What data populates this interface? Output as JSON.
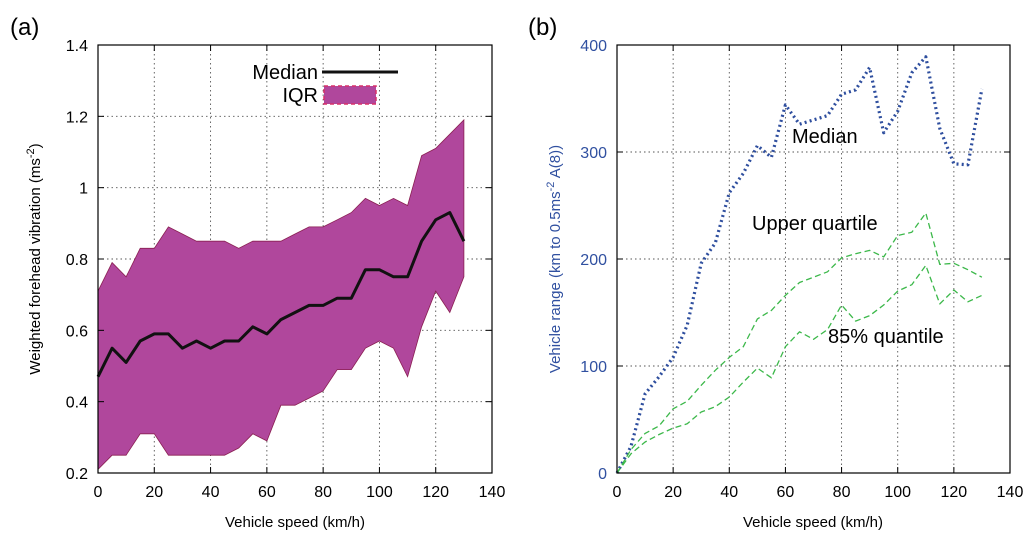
{
  "chart_data": [
    {
      "type": "line",
      "panel_label": "(a)",
      "xlabel": "Vehicle speed (km/h)",
      "ylabel": "Weighted forehead vibration (ms",
      "ylabel_sup": "-2",
      "ylabel_tail": ")",
      "xlim": [
        0,
        140
      ],
      "ylim": [
        0.2,
        1.4
      ],
      "xticks": [
        "0",
        "20",
        "40",
        "60",
        "80",
        "100",
        "120",
        "140"
      ],
      "yticks": [
        "0.2",
        "0.4",
        "0.6",
        "0.8",
        "1",
        "1.2",
        "1.4"
      ],
      "grid": true,
      "legend_position": "top-right",
      "x": [
        0,
        5,
        10,
        15,
        20,
        25,
        30,
        35,
        40,
        45,
        50,
        55,
        60,
        65,
        70,
        75,
        80,
        85,
        90,
        95,
        100,
        105,
        110,
        115,
        120,
        125,
        130
      ],
      "series": [
        {
          "name": "Median",
          "type": "line",
          "color": "#111111",
          "values": [
            0.47,
            0.55,
            0.51,
            0.57,
            0.59,
            0.59,
            0.55,
            0.57,
            0.55,
            0.57,
            0.57,
            0.61,
            0.59,
            0.63,
            0.65,
            0.67,
            0.67,
            0.69,
            0.69,
            0.77,
            0.77,
            0.75,
            0.75,
            0.85,
            0.91,
            0.93,
            0.85
          ]
        },
        {
          "name": "IQR",
          "type": "band",
          "color": "#b0479c",
          "edge_color": "#d8306a",
          "lower": [
            0.21,
            0.25,
            0.25,
            0.31,
            0.31,
            0.25,
            0.25,
            0.25,
            0.25,
            0.25,
            0.27,
            0.31,
            0.29,
            0.39,
            0.39,
            0.41,
            0.43,
            0.49,
            0.49,
            0.55,
            0.57,
            0.55,
            0.47,
            0.61,
            0.71,
            0.65,
            0.75
          ],
          "upper": [
            0.71,
            0.79,
            0.75,
            0.83,
            0.83,
            0.89,
            0.87,
            0.85,
            0.85,
            0.85,
            0.83,
            0.85,
            0.85,
            0.85,
            0.87,
            0.89,
            0.89,
            0.91,
            0.93,
            0.97,
            0.95,
            0.97,
            0.95,
            1.09,
            1.11,
            1.15,
            1.19
          ]
        }
      ]
    },
    {
      "type": "line",
      "panel_label": "(b)",
      "xlabel": "Vehicle speed (km/h)",
      "ylabel": "Vehicle range (km to 0.5ms",
      "ylabel_sup": "-2",
      "ylabel_tail": " A(8))",
      "xlim": [
        0,
        140
      ],
      "ylim": [
        0,
        400
      ],
      "xticks": [
        "0",
        "20",
        "40",
        "60",
        "80",
        "100",
        "120",
        "140"
      ],
      "yticks": [
        "0",
        "100",
        "200",
        "300",
        "400"
      ],
      "grid": true,
      "x": [
        0,
        5,
        10,
        15,
        20,
        25,
        30,
        35,
        40,
        45,
        50,
        55,
        60,
        65,
        70,
        75,
        80,
        85,
        90,
        95,
        100,
        105,
        110,
        115,
        120,
        125,
        130
      ],
      "series": [
        {
          "name": "Median",
          "type": "line",
          "style": "dotted",
          "color": "#2e4e9e",
          "values": [
            0,
            25,
            74,
            90,
            108,
            138,
            196,
            215,
            262,
            280,
            306,
            295,
            344,
            326,
            330,
            334,
            354,
            358,
            379,
            318,
            338,
            374,
            389,
            322,
            289,
            288,
            359
          ]
        },
        {
          "name": "Upper quartile",
          "type": "line",
          "style": "dashed",
          "color": "#3cb84a",
          "values": [
            0,
            22,
            37,
            44,
            60,
            67,
            82,
            96,
            108,
            118,
            144,
            152,
            166,
            178,
            183,
            188,
            201,
            205,
            208,
            202,
            222,
            225,
            243,
            195,
            196,
            190,
            183
          ]
        },
        {
          "name": "85% quantile",
          "type": "line",
          "style": "dashed",
          "color": "#3cb84a",
          "values": [
            0,
            18,
            29,
            36,
            42,
            46,
            57,
            62,
            71,
            85,
            98,
            89,
            118,
            132,
            125,
            134,
            157,
            142,
            147,
            157,
            170,
            176,
            194,
            158,
            171,
            160,
            166
          ]
        }
      ],
      "annotations": [
        "Median",
        "Upper quartile",
        "85% quantile"
      ]
    }
  ]
}
